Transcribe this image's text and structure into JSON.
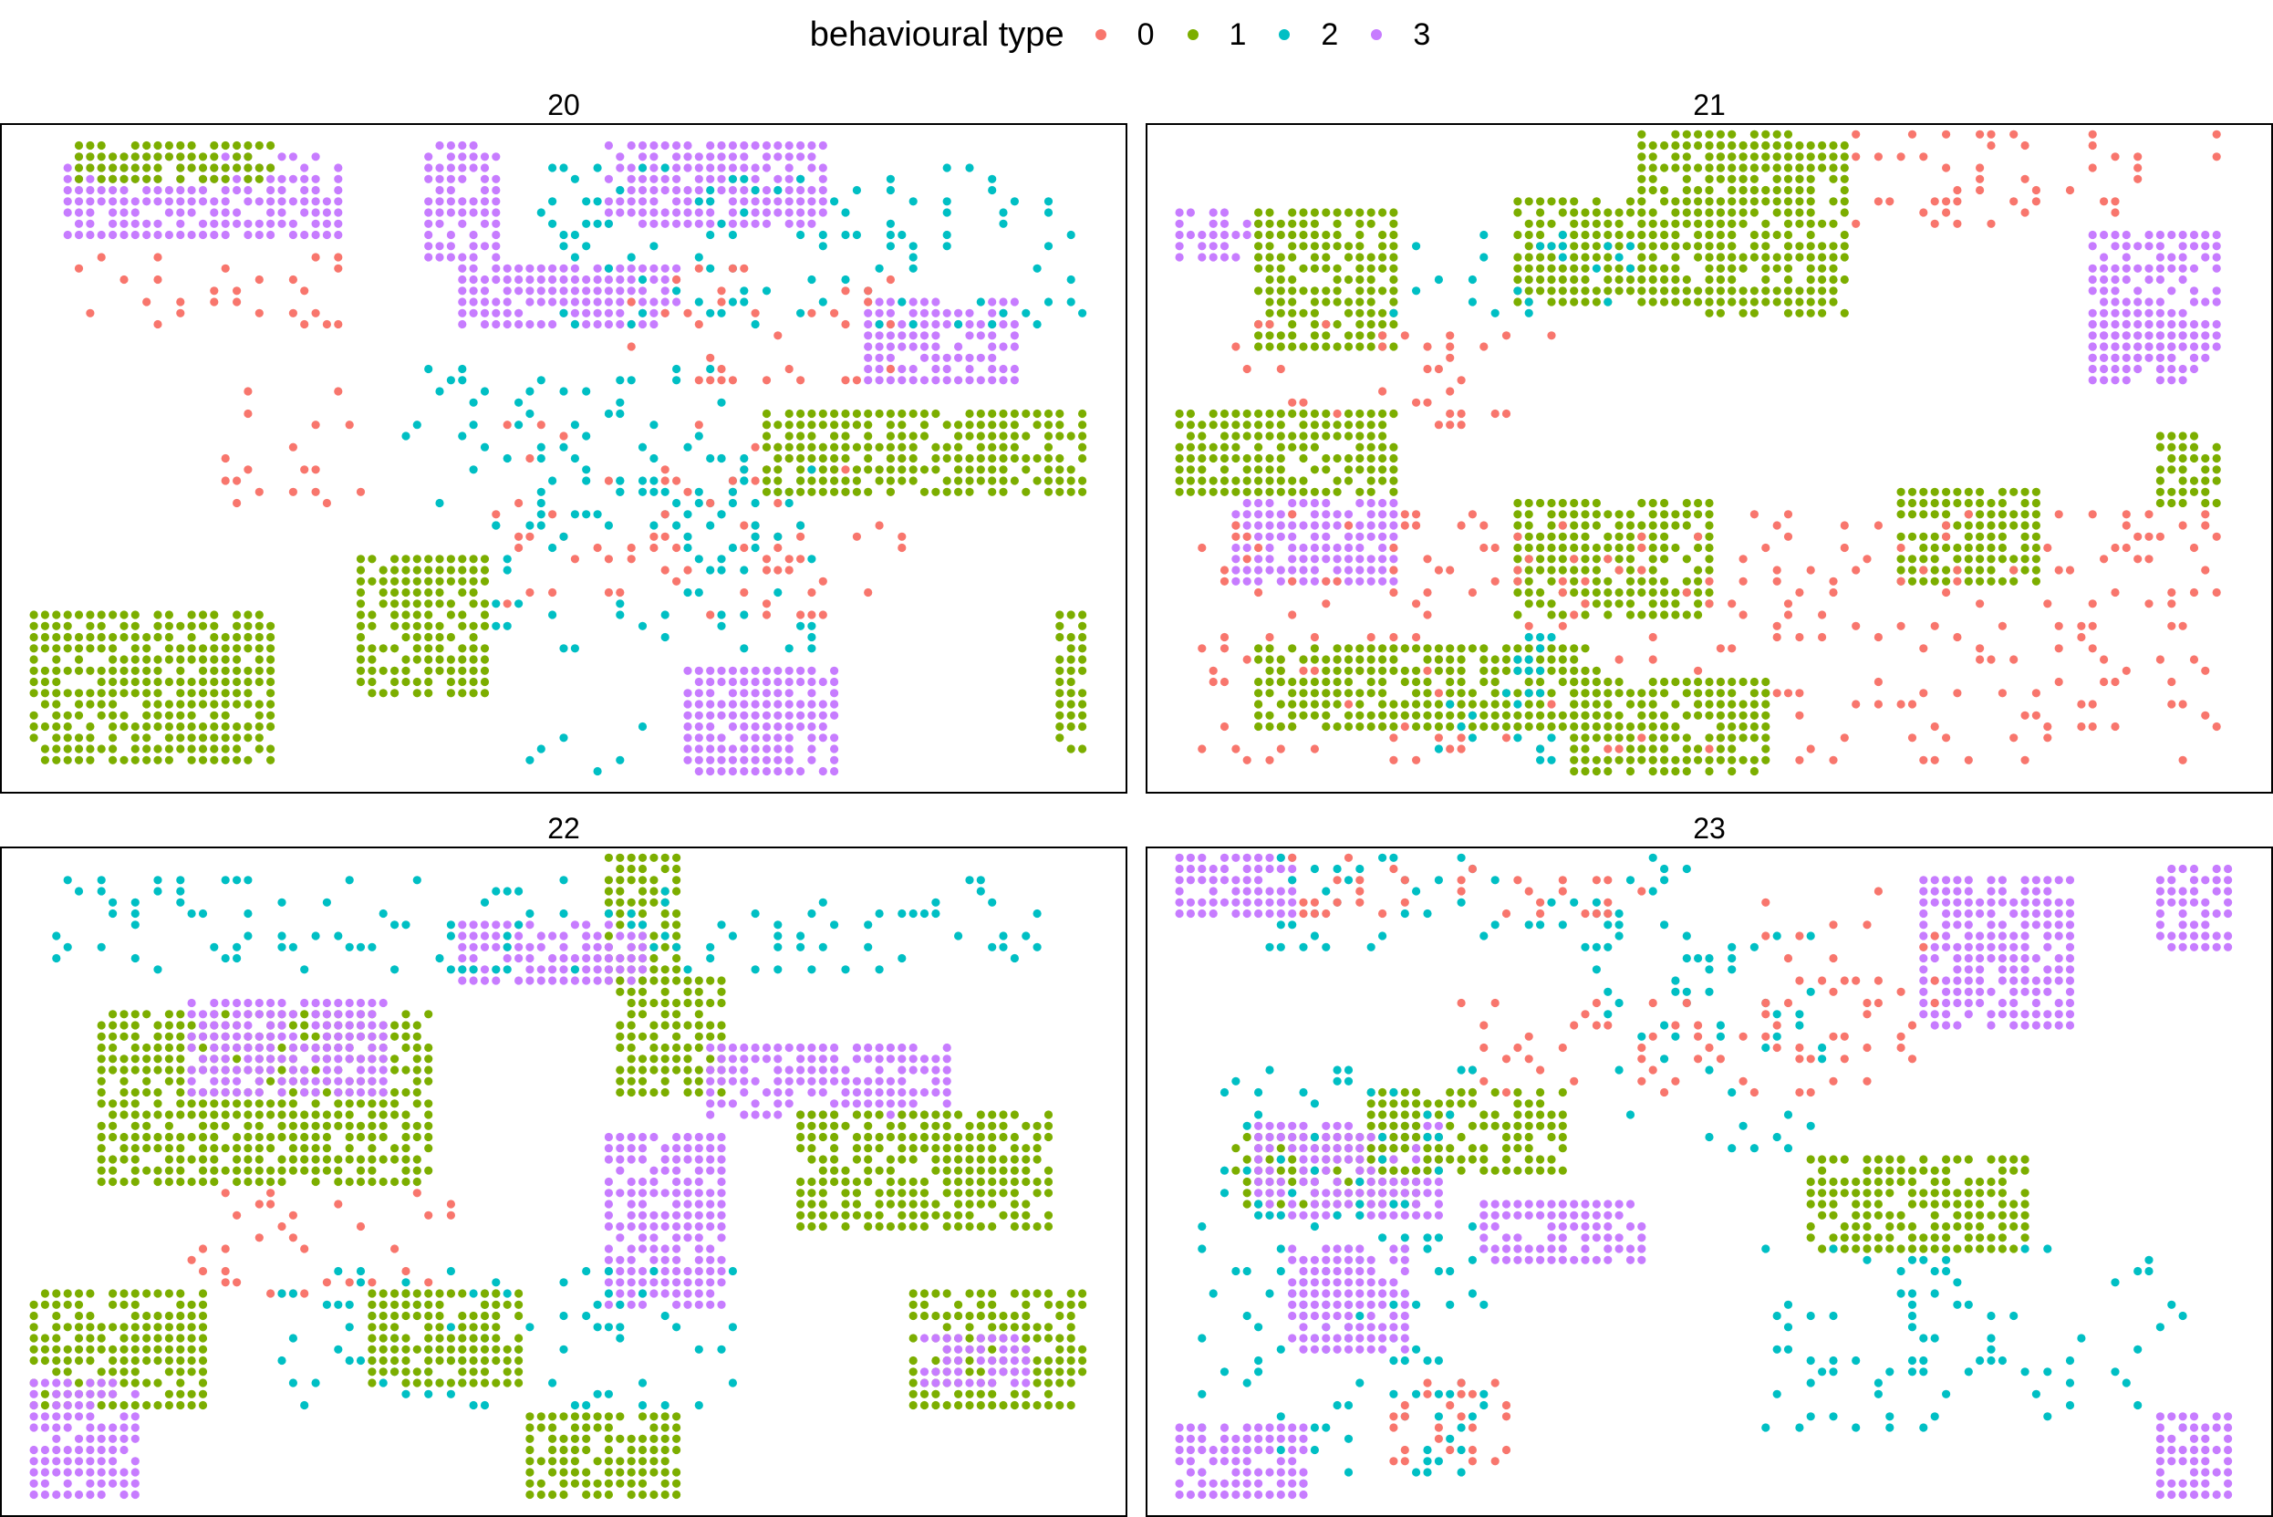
{
  "chart_data": {
    "type": "scatter",
    "legend": {
      "title": "behavioural type",
      "placement": "top",
      "entries": [
        {
          "label": "0",
          "color": "#F8766D"
        },
        {
          "label": "1",
          "color": "#7CAE00"
        },
        {
          "label": "2",
          "color": "#00BFC4"
        },
        {
          "label": "3",
          "color": "#C77CFF"
        }
      ]
    },
    "xlim": [
      0,
      100
    ],
    "ylim": [
      0,
      60
    ],
    "grid": false,
    "facets": [
      {
        "title": "20",
        "clusters": [
          {
            "type": 3,
            "x": [
              6,
              30
            ],
            "y": [
              50,
              57
            ]
          },
          {
            "type": 1,
            "x": [
              7,
              24
            ],
            "y": [
              55,
              58
            ]
          },
          {
            "type": 0,
            "x": [
              7,
              30
            ],
            "y": [
              41,
              48
            ]
          },
          {
            "type": 3,
            "x": [
              38,
              44
            ],
            "y": [
              48,
              58
            ]
          },
          {
            "type": 3,
            "x": [
              41,
              60
            ],
            "y": [
              42,
              47
            ]
          },
          {
            "type": 3,
            "x": [
              54,
              73
            ],
            "y": [
              51,
              58
            ]
          },
          {
            "type": 3,
            "x": [
              77,
              90
            ],
            "y": [
              37,
              44
            ]
          },
          {
            "type": 2,
            "x": [
              48,
              96
            ],
            "y": [
              42,
              56
            ]
          },
          {
            "type": 0,
            "x": [
              56,
              80
            ],
            "y": [
              37,
              47
            ]
          },
          {
            "type": 0,
            "x": [
              20,
              32
            ],
            "y": [
              26,
              36
            ]
          },
          {
            "type": 2,
            "x": [
              36,
              66
            ],
            "y": [
              24,
              38
            ]
          },
          {
            "type": 0,
            "x": [
              44,
              80
            ],
            "y": [
              16,
              33
            ]
          },
          {
            "type": 2,
            "x": [
              44,
              72
            ],
            "y": [
              13,
              30
            ]
          },
          {
            "type": 1,
            "x": [
              68,
              96
            ],
            "y": [
              27,
              34
            ]
          },
          {
            "type": 1,
            "x": [
              3,
              24
            ],
            "y": [
              3,
              16
            ]
          },
          {
            "type": 1,
            "x": [
              32,
              43
            ],
            "y": [
              9,
              21
            ]
          },
          {
            "type": 3,
            "x": [
              61,
              74
            ],
            "y": [
              2,
              11
            ]
          },
          {
            "type": 2,
            "x": [
              47,
              57
            ],
            "y": [
              2,
              6
            ]
          },
          {
            "type": 1,
            "x": [
              94,
              96
            ],
            "y": [
              4,
              16
            ]
          }
        ]
      },
      {
        "title": "21",
        "clusters": [
          {
            "type": 1,
            "x": [
              44,
              58
            ],
            "y": [
              54,
              59
            ]
          },
          {
            "type": 1,
            "x": [
              33,
              52
            ],
            "y": [
              44,
              53
            ]
          },
          {
            "type": 1,
            "x": [
              50,
              62
            ],
            "y": [
              43,
              58
            ]
          },
          {
            "type": 0,
            "x": [
              63,
              95
            ],
            "y": [
              51,
              59
            ]
          },
          {
            "type": 3,
            "x": [
              3,
              10
            ],
            "y": [
              48,
              52
            ]
          },
          {
            "type": 1,
            "x": [
              10,
              22
            ],
            "y": [
              40,
              52
            ]
          },
          {
            "type": 2,
            "x": [
              22,
              44
            ],
            "y": [
              43,
              50
            ]
          },
          {
            "type": 3,
            "x": [
              84,
              95
            ],
            "y": [
              39,
              50
            ]
          },
          {
            "type": 3,
            "x": [
              84,
              93
            ],
            "y": [
              37,
              42
            ]
          },
          {
            "type": 0,
            "x": [
              8,
              38
            ],
            "y": [
              33,
              42
            ]
          },
          {
            "type": 1,
            "x": [
              3,
              22
            ],
            "y": [
              27,
              34
            ]
          },
          {
            "type": 3,
            "x": [
              8,
              22
            ],
            "y": [
              19,
              26
            ]
          },
          {
            "type": 1,
            "x": [
              33,
              50
            ],
            "y": [
              16,
              26
            ]
          },
          {
            "type": 1,
            "x": [
              67,
              79
            ],
            "y": [
              19,
              27
            ]
          },
          {
            "type": 1,
            "x": [
              90,
              95
            ],
            "y": [
              26,
              32
            ]
          },
          {
            "type": 0,
            "x": [
              5,
              95
            ],
            "y": [
              3,
              25
            ]
          },
          {
            "type": 1,
            "x": [
              10,
              40
            ],
            "y": [
              6,
              13
            ]
          },
          {
            "type": 1,
            "x": [
              38,
              55
            ],
            "y": [
              2,
              10
            ]
          },
          {
            "type": 2,
            "x": [
              26,
              36
            ],
            "y": [
              3,
              14
            ]
          }
        ]
      },
      {
        "title": "22",
        "clusters": [
          {
            "type": 1,
            "x": [
              54,
              60
            ],
            "y": [
              48,
              59
            ]
          },
          {
            "type": 3,
            "x": [
              41,
              57
            ],
            "y": [
              48,
              53
            ]
          },
          {
            "type": 1,
            "x": [
              55,
              64
            ],
            "y": [
              38,
              48
            ]
          },
          {
            "type": 3,
            "x": [
              63,
              84
            ],
            "y": [
              36,
              42
            ]
          },
          {
            "type": 1,
            "x": [
              9,
              38
            ],
            "y": [
              30,
              45
            ]
          },
          {
            "type": 3,
            "x": [
              17,
              34
            ],
            "y": [
              38,
              46
            ]
          },
          {
            "type": 1,
            "x": [
              71,
              93
            ],
            "y": [
              26,
              36
            ]
          },
          {
            "type": 3,
            "x": [
              54,
              64
            ],
            "y": [
              19,
              34
            ]
          },
          {
            "type": 0,
            "x": [
              17,
              40
            ],
            "y": [
              20,
              29
            ]
          },
          {
            "type": 2,
            "x": [
              25,
              65
            ],
            "y": [
              10,
              22
            ]
          },
          {
            "type": 1,
            "x": [
              3,
              18
            ],
            "y": [
              10,
              20
            ]
          },
          {
            "type": 1,
            "x": [
              33,
              46
            ],
            "y": [
              12,
              20
            ]
          },
          {
            "type": 1,
            "x": [
              81,
              96
            ],
            "y": [
              10,
              20
            ]
          },
          {
            "type": 3,
            "x": [
              82,
              91
            ],
            "y": [
              12,
              16
            ]
          },
          {
            "type": 1,
            "x": [
              47,
              60
            ],
            "y": [
              2,
              9
            ]
          },
          {
            "type": 3,
            "x": [
              3,
              12
            ],
            "y": [
              2,
              12
            ]
          },
          {
            "type": 2,
            "x": [
              5,
              92
            ],
            "y": [
              49,
              57
            ]
          }
        ]
      },
      {
        "title": "23",
        "clusters": [
          {
            "type": 3,
            "x": [
              3,
              13
            ],
            "y": [
              54,
              59
            ]
          },
          {
            "type": 2,
            "x": [
              10,
              48
            ],
            "y": [
              51,
              59
            ]
          },
          {
            "type": 0,
            "x": [
              13,
              44
            ],
            "y": [
              54,
              59
            ]
          },
          {
            "type": 3,
            "x": [
              69,
              82
            ],
            "y": [
              44,
              57
            ]
          },
          {
            "type": 3,
            "x": [
              90,
              96
            ],
            "y": [
              51,
              58
            ]
          },
          {
            "type": 0,
            "x": [
              55,
              70
            ],
            "y": [
              38,
              56
            ]
          },
          {
            "type": 2,
            "x": [
              40,
              60
            ],
            "y": [
              33,
              52
            ]
          },
          {
            "type": 0,
            "x": [
              26,
              58
            ],
            "y": [
              38,
              46
            ]
          },
          {
            "type": 1,
            "x": [
              8,
              24
            ],
            "y": [
              28,
              34
            ]
          },
          {
            "type": 3,
            "x": [
              10,
              26
            ],
            "y": [
              27,
              35
            ]
          },
          {
            "type": 1,
            "x": [
              20,
              37
            ],
            "y": [
              31,
              38
            ]
          },
          {
            "type": 2,
            "x": [
              5,
              30
            ],
            "y": [
              3,
              40
            ]
          },
          {
            "type": 3,
            "x": [
              30,
              44
            ],
            "y": [
              23,
              28
            ]
          },
          {
            "type": 1,
            "x": [
              59,
              78
            ],
            "y": [
              24,
              32
            ]
          },
          {
            "type": 3,
            "x": [
              13,
              23
            ],
            "y": [
              15,
              24
            ]
          },
          {
            "type": 2,
            "x": [
              55,
              92
            ],
            "y": [
              8,
              24
            ]
          },
          {
            "type": 0,
            "x": [
              22,
              32
            ],
            "y": [
              5,
              12
            ]
          },
          {
            "type": 3,
            "x": [
              3,
              14
            ],
            "y": [
              2,
              8
            ]
          },
          {
            "type": 3,
            "x": [
              90,
              96
            ],
            "y": [
              2,
              9
            ]
          }
        ]
      }
    ]
  }
}
